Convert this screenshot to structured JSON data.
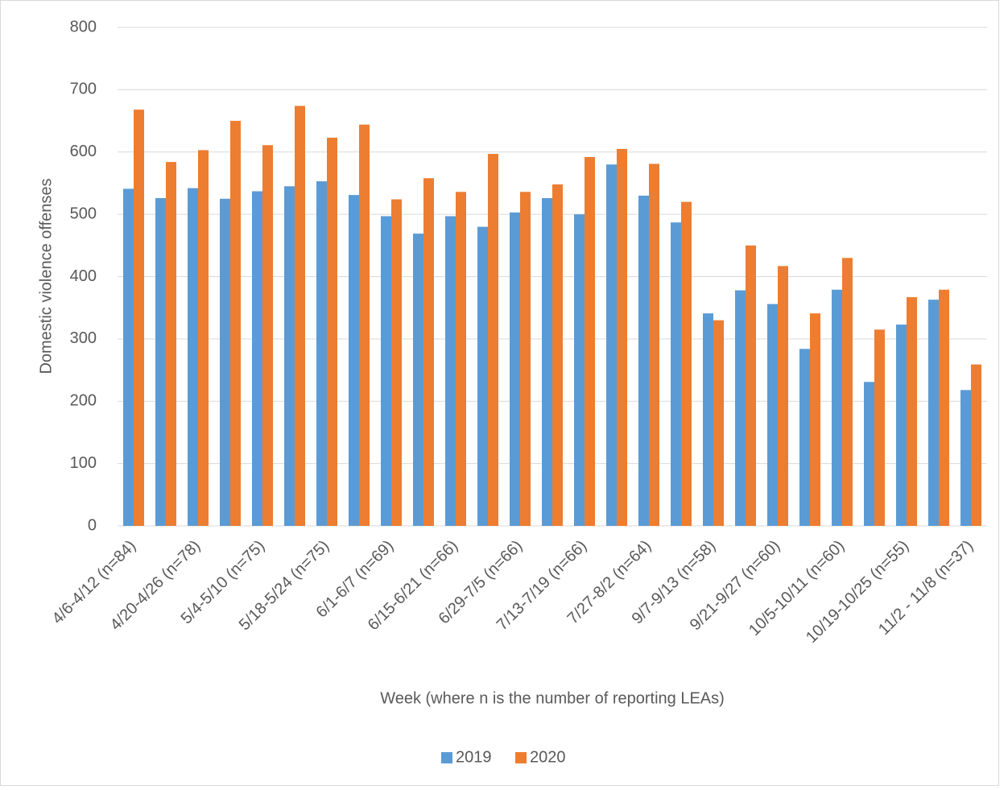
{
  "chart_data": {
    "type": "bar",
    "x_label": "Week (where n is the number of reporting LEAs)",
    "y_label": "Domestic violence offenses",
    "categories": [
      "4/6-4/12 (n=84)",
      null,
      "4/20-4/26 (n=78)",
      null,
      "5/4-5/10 (n=75)",
      null,
      "5/18-5/24 (n=75)",
      null,
      "6/1-6/7 (n=69)",
      null,
      "6/15-6/21 (n=66)",
      null,
      "6/29-7/5 (n=66)",
      null,
      "7/13-7/19 (n=66)",
      null,
      "7/27-8/2 (n=64)",
      null,
      "9/7-9/13 (n=58)",
      null,
      "9/21-9/27 (n=60)",
      null,
      "10/5-10/11 (n=60)",
      null,
      "10/19-10/25 (n=55)",
      null,
      "11/2 - 11/8 (n=37)"
    ],
    "series": [
      {
        "name": "2019",
        "color": "#5b9bd5",
        "values": [
          541,
          526,
          542,
          525,
          537,
          545,
          553,
          531,
          497,
          469,
          497,
          480,
          503,
          526,
          500,
          580,
          530,
          487,
          341,
          378,
          356,
          284,
          379,
          231,
          323,
          363,
          218
        ]
      },
      {
        "name": "2020",
        "color": "#ed7d31",
        "values": [
          668,
          584,
          603,
          650,
          611,
          674,
          623,
          644,
          524,
          558,
          536,
          597,
          536,
          548,
          592,
          605,
          581,
          520,
          330,
          450,
          417,
          341,
          430,
          315,
          367,
          379,
          259
        ]
      }
    ],
    "ylim": [
      0,
      800
    ],
    "yticks": [
      0,
      100,
      200,
      300,
      400,
      500,
      600,
      700,
      800
    ],
    "grid": true,
    "legend": "bottom"
  }
}
